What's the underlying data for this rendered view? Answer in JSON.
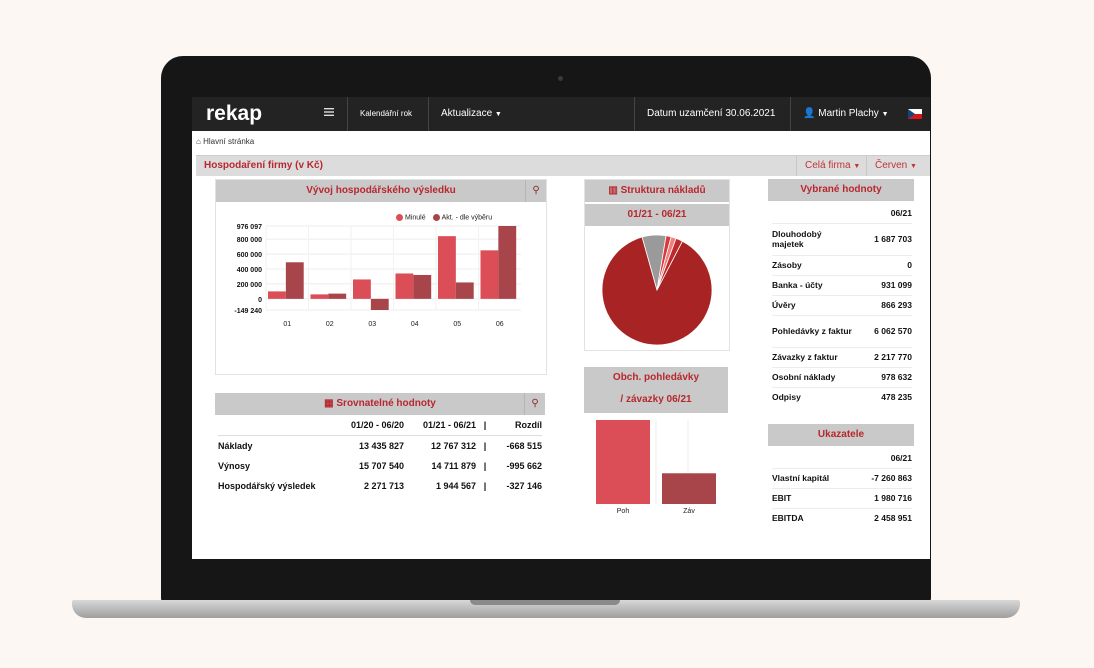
{
  "header": {
    "logo": "rekap",
    "menu_icon": "hamburger-icon",
    "calendar_label": "Kalendářní rok",
    "update_label": "Aktualizace",
    "lock_date": "Datum uzamčení 30.06.2021",
    "user": "Martin Plachy",
    "user_icon": "user-icon",
    "flag_icon": "czech-flag-icon"
  },
  "breadcrumb": {
    "icon": "home-icon",
    "label": "Hlavní stránka"
  },
  "section": {
    "title": "Hospodaření firmy (v Kč)",
    "company_select": "Celá firma",
    "month_select": "Červen"
  },
  "result_chart": {
    "title": "Vývoj hospodářského výsledku",
    "legend_prev": "Minulé",
    "legend_cur": "Akt. - dle výběru",
    "colors": {
      "prev": "#dc4e57",
      "cur": "#a8454b"
    },
    "chart_data": {
      "type": "bar",
      "categories": [
        "01",
        "02",
        "03",
        "04",
        "05",
        "06"
      ],
      "series": [
        {
          "name": "Minulé",
          "values": [
            100000,
            60000,
            260000,
            340000,
            840000,
            650000
          ]
        },
        {
          "name": "Akt. - dle výběru",
          "values": [
            490000,
            70000,
            -149240,
            320000,
            220000,
            976097
          ]
        }
      ],
      "ylim": [
        -149240,
        976097
      ],
      "y_ticks": [
        "976 097",
        "800 000",
        "600 000",
        "400 000",
        "200 000",
        "0",
        "-149 240"
      ],
      "grid": true,
      "legend": "top-right"
    }
  },
  "cost_structure": {
    "title": "Struktura nákladů",
    "period": "01/21 - 06/21",
    "chart_data": {
      "type": "pie",
      "values": [
        88,
        7,
        1.5,
        1.5,
        2
      ],
      "colors": [
        "#a82424",
        "#9a9a9a",
        "#d93a3a",
        "#f08080",
        "#c0282c"
      ],
      "legend": "none"
    }
  },
  "receivables": {
    "title_line1": "Obch. pohledávky",
    "title_line2": "/ závazky 06/21",
    "chart_data": {
      "type": "bar",
      "categories": [
        "Poh",
        "Záv"
      ],
      "values": [
        6062570,
        2217770
      ],
      "colors": [
        "#dc4e57",
        "#a8454b"
      ]
    }
  },
  "selected_values": {
    "title": "Vybrané hodnoty",
    "period": "06/21",
    "rows": [
      {
        "label": "Dlouhodobý majetek",
        "value": "1 687 703"
      },
      {
        "label": "Zásoby",
        "value": "0"
      },
      {
        "label": "Banka - účty",
        "value": "931 099"
      },
      {
        "label": "Úvěry",
        "value": "866 293"
      },
      {
        "label": "Pohledávky z faktur",
        "value": "6 062 570"
      },
      {
        "label": "Závazky z faktur",
        "value": "2 217 770"
      },
      {
        "label": "Osobní náklady",
        "value": "978 632"
      },
      {
        "label": "Odpisy",
        "value": "478 235"
      }
    ]
  },
  "indicators": {
    "title": "Ukazatele",
    "period": "06/21",
    "rows": [
      {
        "label": "Vlastní kapitál",
        "value": "-7 260 863"
      },
      {
        "label": "EBIT",
        "value": "1 980 716"
      },
      {
        "label": "EBITDA",
        "value": "2 458 951"
      }
    ]
  },
  "comparable": {
    "title": "Srovnatelné hodnoty",
    "col1": "01/20 - 06/20",
    "col2": "01/21 - 06/21",
    "sep": "|",
    "col3": "Rozdíl",
    "rows": [
      {
        "label": "Náklady",
        "v1": "13 435 827",
        "v2": "12 767 312",
        "diff": "-668 515"
      },
      {
        "label": "Výnosy",
        "v1": "15 707 540",
        "v2": "14 711 879",
        "diff": "-995 662"
      },
      {
        "label": "Hospodářský výsledek",
        "v1": "2 271 713",
        "v2": "1 944 567",
        "diff": "-327 146"
      }
    ]
  }
}
